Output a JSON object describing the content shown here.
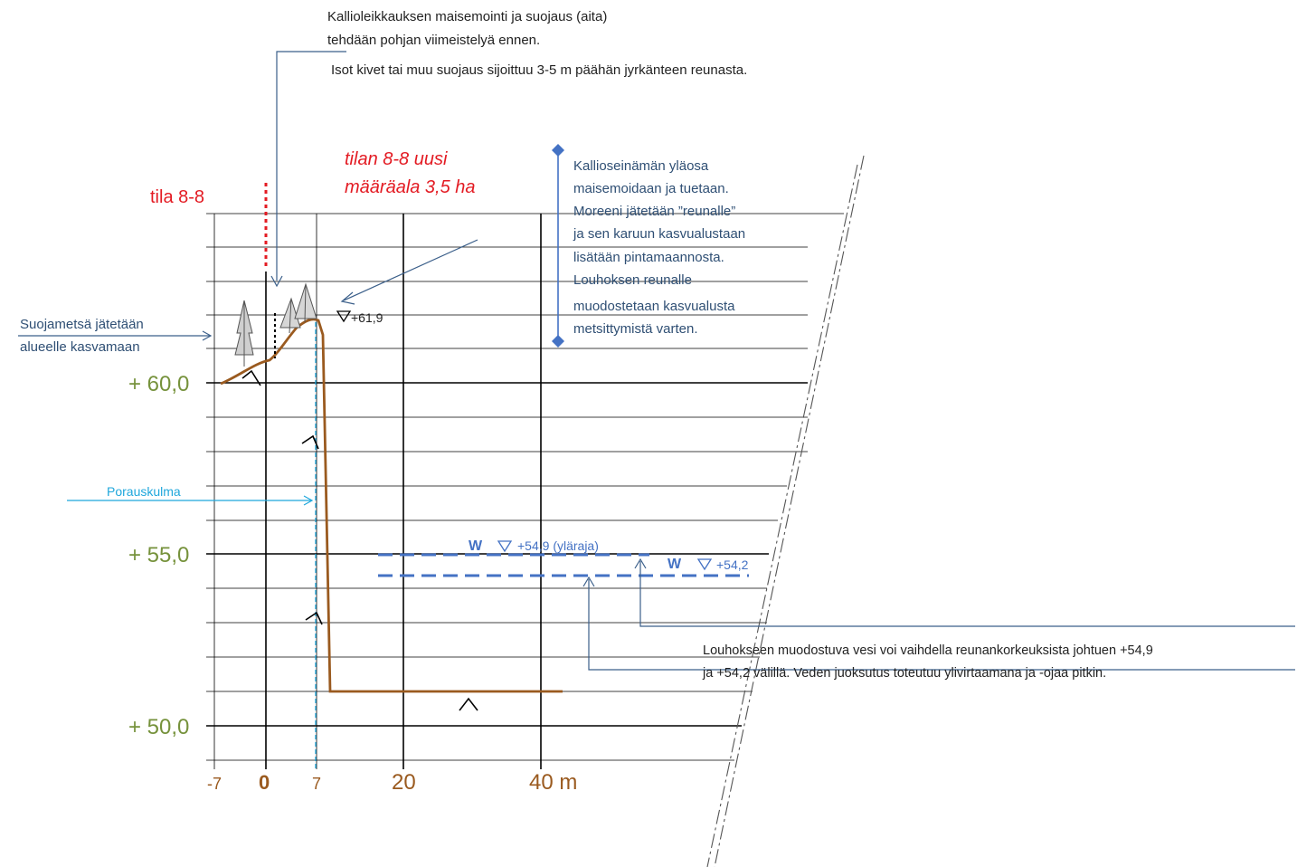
{
  "notes": {
    "top_line1": "Kallioleikkauksen maisemointi ja suojaus (aita)",
    "top_line2": "tehdään pohjan viimeistelyä ennen.",
    "top_line3": "Isot kivet tai muu suojaus sijoittuu 3-5 m päähän jyrkänteen reunasta.",
    "wall_lines": [
      "Kallioseinämän yläosa",
      "maisemoidaan ja tuetaan.",
      "Moreeni jätetään ”reunalle”",
      "ja sen karuun kasvualustaan",
      "lisätään pintamaannosta.",
      "Louhoksen reunalle",
      "muodostetaan kasvualusta",
      "metsittymistä varten."
    ],
    "forest_line1": "Suojametsä jätetään",
    "forest_line2": "alueelle kasvamaan",
    "drilling_angle": "Porauskulma",
    "water_line1": "Louhokseen muodostuva vesi voi vaihdella reunankorkeuksista johtuen +54,9",
    "water_line2": "ja +54,2 välillä. Veden juoksutus toteutuu ylivirtaamana ja -ojaa pitkin."
  },
  "parcel_label": "tila 8-8",
  "new_area_line1": "tilan 8-8 uusi",
  "new_area_line2": "määräala 3,5 ha",
  "levels": {
    "top_marker": "+61,9",
    "water_upper_w": "W",
    "water_upper": "+54,9 (yläraja)",
    "water_lower_w": "W",
    "water_lower": "+54,2",
    "elev_60": "+ 60,0",
    "elev_55": "+ 55,0",
    "elev_50": "+ 50,0"
  },
  "x_axis": {
    "neg7": "-7",
    "zero": "0",
    "seven": "7",
    "twenty": "20",
    "forty": "40 m"
  },
  "colors": {
    "profile": "#9a5a1f",
    "annotation_blue": "#3b5f8a",
    "water_blue": "#4472c4",
    "elevation_green": "#76923c",
    "parcel_red": "#e31b23",
    "drilling_cyan": "#1fa7dc"
  }
}
